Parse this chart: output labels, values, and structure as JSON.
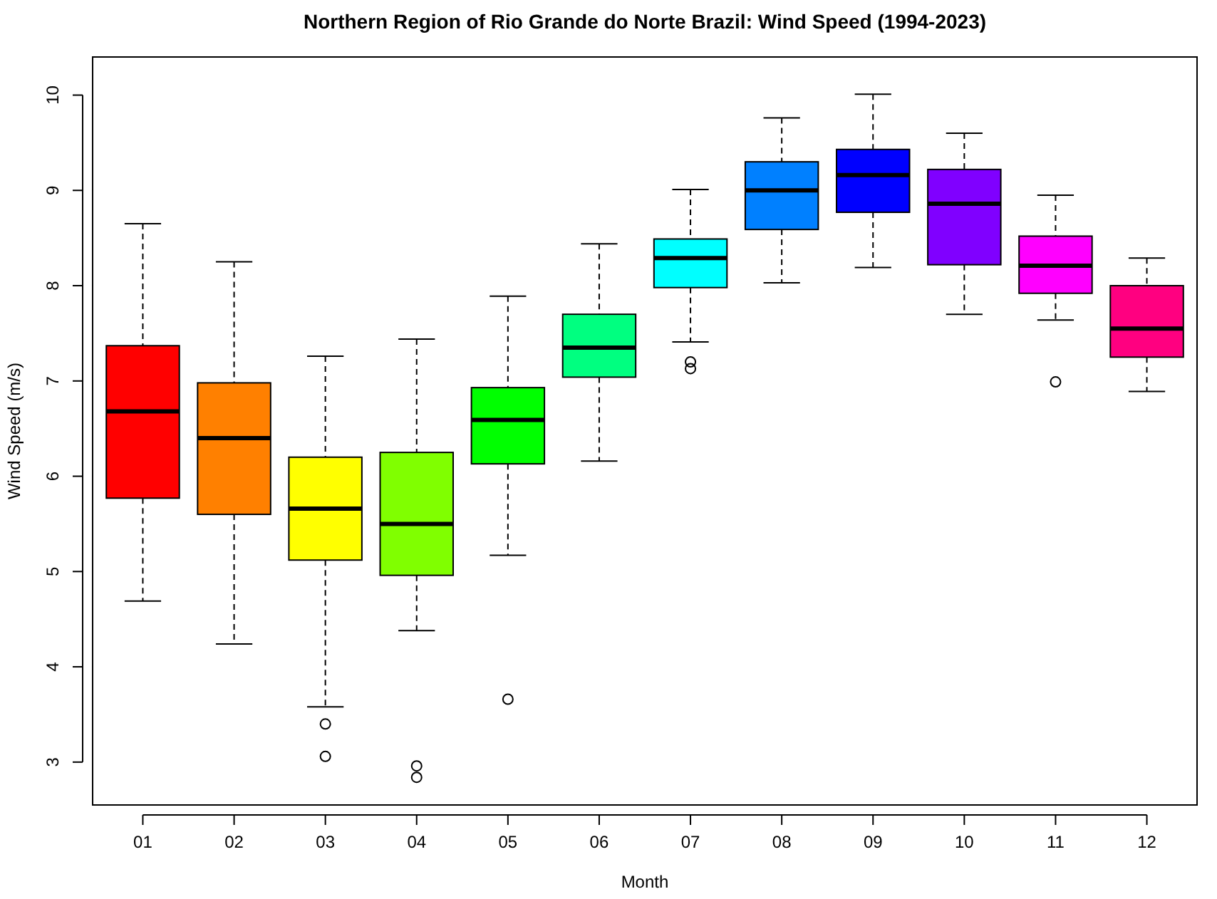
{
  "chart_data": {
    "type": "box",
    "title": "Northern Region of Rio Grande do Norte Brazil: Wind Speed (1994-2023)",
    "xlabel": "Month",
    "ylabel": "Wind Speed (m/s)",
    "categories": [
      "01",
      "02",
      "03",
      "04",
      "05",
      "06",
      "07",
      "08",
      "09",
      "10",
      "11",
      "12"
    ],
    "colors": [
      "#ff0000",
      "#ff8000",
      "#ffff00",
      "#80ff00",
      "#00ff00",
      "#00ff80",
      "#00ffff",
      "#0080ff",
      "#0000ff",
      "#8000ff",
      "#ff00ff",
      "#ff0080"
    ],
    "boxes": [
      {
        "low": 4.69,
        "q1": 5.77,
        "median": 6.68,
        "q3": 7.37,
        "high": 8.65
      },
      {
        "low": 4.24,
        "q1": 5.6,
        "median": 6.4,
        "q3": 6.98,
        "high": 8.25
      },
      {
        "low": 3.58,
        "q1": 5.12,
        "median": 5.66,
        "q3": 6.2,
        "high": 7.26,
        "outliers": [
          3.4,
          3.06
        ]
      },
      {
        "low": 4.38,
        "q1": 4.96,
        "median": 5.5,
        "q3": 6.25,
        "high": 7.44,
        "outliers": [
          2.96,
          2.84
        ]
      },
      {
        "low": 5.17,
        "q1": 6.13,
        "median": 6.59,
        "q3": 6.93,
        "high": 7.89,
        "outliers": [
          3.66
        ]
      },
      {
        "low": 6.16,
        "q1": 7.04,
        "median": 7.35,
        "q3": 7.7,
        "high": 8.44
      },
      {
        "low": 7.41,
        "q1": 7.98,
        "median": 8.29,
        "q3": 8.49,
        "high": 9.01,
        "outliers": [
          7.2,
          7.13
        ]
      },
      {
        "low": 8.03,
        "q1": 8.59,
        "median": 9.0,
        "q3": 9.3,
        "high": 9.76
      },
      {
        "low": 8.19,
        "q1": 8.77,
        "median": 9.16,
        "q3": 9.43,
        "high": 10.01
      },
      {
        "low": 7.7,
        "q1": 8.22,
        "median": 8.86,
        "q3": 9.22,
        "high": 9.6
      },
      {
        "low": 7.64,
        "q1": 7.92,
        "median": 8.21,
        "q3": 8.52,
        "high": 8.95,
        "outliers": [
          6.99
        ]
      },
      {
        "low": 6.89,
        "q1": 7.25,
        "median": 7.55,
        "q3": 8.0,
        "high": 8.29
      }
    ],
    "ylim": [
      2.55,
      10.4
    ],
    "yticks": [
      3,
      4,
      5,
      6,
      7,
      8,
      9,
      10
    ],
    "grid": false
  }
}
